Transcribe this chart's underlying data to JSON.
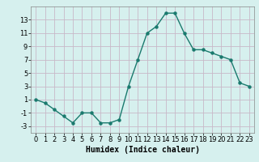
{
  "x": [
    0,
    1,
    2,
    3,
    4,
    5,
    6,
    7,
    8,
    9,
    10,
    11,
    12,
    13,
    14,
    15,
    16,
    17,
    18,
    19,
    20,
    21,
    22,
    23
  ],
  "y": [
    1,
    0.5,
    -0.5,
    -1.5,
    -2.5,
    -1.0,
    -1.0,
    -2.5,
    -2.5,
    -2.0,
    3.0,
    7.0,
    11.0,
    12.0,
    14.0,
    14.0,
    11.0,
    8.5,
    8.5,
    8.0,
    7.5,
    7.0,
    3.5,
    3.0
  ],
  "line_color": "#1a7a6e",
  "marker_color": "#1a7a6e",
  "bg_color": "#d6f0ee",
  "grid_color": "#c8b8c8",
  "xlabel": "Humidex (Indice chaleur)",
  "ylim": [
    -4,
    15
  ],
  "xlim": [
    -0.5,
    23.5
  ],
  "yticks": [
    -3,
    -1,
    1,
    3,
    5,
    7,
    9,
    11,
    13
  ],
  "xticks": [
    0,
    1,
    2,
    3,
    4,
    5,
    6,
    7,
    8,
    9,
    10,
    11,
    12,
    13,
    14,
    15,
    16,
    17,
    18,
    19,
    20,
    21,
    22,
    23
  ],
  "xlabel_fontsize": 7,
  "tick_fontsize": 6,
  "line_width": 1.0,
  "marker_size": 2.2
}
